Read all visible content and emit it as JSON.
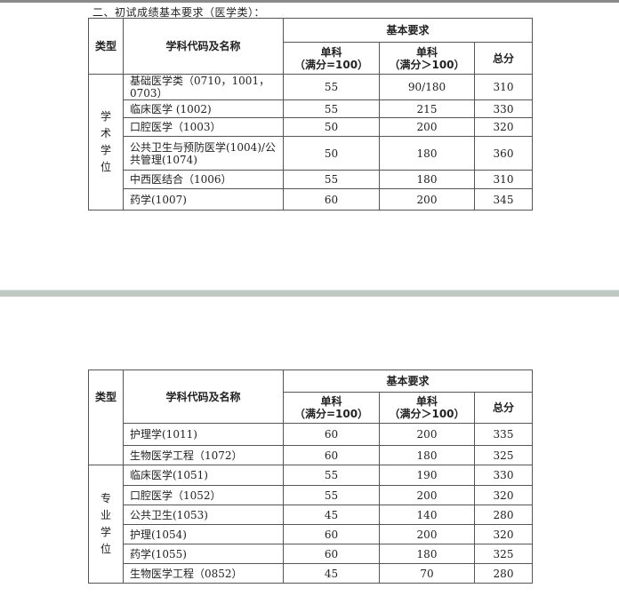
{
  "caption": "二、初试成绩基本要求（医学类）：",
  "header": {
    "type": "类型",
    "subject": "学科代码及名称",
    "basic": "基本要求",
    "single100_line1": "单科",
    "single100_line2": "（满分=100）",
    "singleover_line1": "单科",
    "singleover_line2": "（满分＞100）",
    "total": "总分"
  },
  "table1": {
    "group": "学术学位",
    "rows": [
      {
        "name": "基础医学类（0710，1001，0703）",
        "s100": "55",
        "sover": "90/180",
        "total": "310"
      },
      {
        "name": "临床医学 (1002)",
        "s100": "55",
        "sover": "215",
        "total": "330"
      },
      {
        "name": "口腔医学（1003）",
        "s100": "50",
        "sover": "200",
        "total": "320"
      },
      {
        "name": "公共卫生与预防医学(1004)/公共管理(1074)",
        "s100": "50",
        "sover": "180",
        "total": "360"
      },
      {
        "name": "中西医结合（1006）",
        "s100": "55",
        "sover": "180",
        "total": "310"
      },
      {
        "name": "药学(1007)",
        "s100": "60",
        "sover": "200",
        "total": "345"
      }
    ]
  },
  "table2": {
    "continued_rows": [
      {
        "name": "护理学(1011)",
        "s100": "60",
        "sover": "200",
        "total": "335"
      },
      {
        "name": "生物医学工程（1072）",
        "s100": "60",
        "sover": "180",
        "total": "325"
      }
    ],
    "group": "专业学位",
    "rows": [
      {
        "name": "临床医学(1051)",
        "s100": "55",
        "sover": "190",
        "total": "330"
      },
      {
        "name": "口腔医学（1052）",
        "s100": "55",
        "sover": "200",
        "total": "320"
      },
      {
        "name": "公共卫生(1053)",
        "s100": "45",
        "sover": "140",
        "total": "280"
      },
      {
        "name": "护理(1054)",
        "s100": "60",
        "sover": "200",
        "total": "320"
      },
      {
        "name": "药学(1055)",
        "s100": "60",
        "sover": "180",
        "total": "325"
      },
      {
        "name": "生物医学工程（0852）",
        "s100": "45",
        "sover": "70",
        "total": "280"
      }
    ]
  }
}
